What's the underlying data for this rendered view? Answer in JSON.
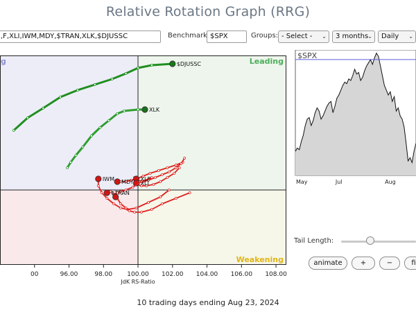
{
  "title": "Relative Rotation Graph (RRG)",
  "toolbar": {
    "symbols_value": ",F,XLI,IWM,MDY,$TRAN,XLK,$DJUSSC",
    "benchmark_label": "Benchmark:",
    "benchmark_value": "$SPX",
    "groups_label": "Groups:",
    "groups_value": "- Select -",
    "period_value": "3 months",
    "frequency_value": "Daily",
    "chevron": "⌄"
  },
  "rrg": {
    "quadrants": {
      "leading": "Leading",
      "weakening": "Weakening",
      "improving_partial": "g",
      "colors": {
        "leading_bg": "#edf5ec",
        "weakening_bg": "#f6f6e9",
        "lagging_bg": "#f9e9ea",
        "improving_bg": "#ededf8",
        "leading_text": "#4cae5a",
        "weakening_text": "#e0b417",
        "improving_text": "#8d8fd6"
      }
    },
    "x_ticks": [
      "00",
      "96.00",
      "98.00",
      "100.00",
      "102.00",
      "104.00",
      "106.00",
      "108.00"
    ],
    "x_axis_label": "JdK RS-Ratio",
    "series": [
      {
        "name": "$DJUSSC",
        "color": "#1f8f1f",
        "head_color": "#187818",
        "points": [
          [
            92.8,
            104.3
          ],
          [
            93.6,
            105.2
          ],
          [
            94.5,
            105.9
          ],
          [
            95.5,
            106.7
          ],
          [
            96.5,
            107.2
          ],
          [
            97.5,
            107.6
          ],
          [
            98.5,
            108.0
          ],
          [
            99.3,
            108.4
          ],
          [
            100.0,
            108.8
          ],
          [
            100.8,
            109.0
          ],
          [
            102.0,
            109.1
          ]
        ]
      },
      {
        "name": "XLK",
        "color": "#2f9e2f",
        "head_color": "#1c6f1c",
        "points": [
          [
            95.9,
            101.6
          ],
          [
            96.1,
            102.0
          ],
          [
            96.4,
            102.5
          ],
          [
            96.8,
            103.1
          ],
          [
            97.3,
            103.9
          ],
          [
            97.8,
            104.5
          ],
          [
            98.3,
            105.0
          ],
          [
            98.8,
            105.5
          ],
          [
            99.2,
            105.7
          ],
          [
            100.0,
            105.8
          ],
          [
            100.4,
            105.8
          ]
        ]
      },
      {
        "name": "IWM",
        "color": "#e0211f",
        "head_color": "#d01515",
        "points": [
          [
            101.8,
            100.0
          ],
          [
            101.3,
            99.5
          ],
          [
            100.6,
            99.1
          ],
          [
            99.9,
            98.7
          ],
          [
            99.4,
            98.6
          ],
          [
            99.0,
            98.7
          ],
          [
            98.6,
            99.0
          ],
          [
            98.2,
            99.4
          ],
          [
            97.9,
            99.8
          ],
          [
            97.7,
            100.3
          ],
          [
            97.7,
            100.8
          ]
        ]
      },
      {
        "name": "MDY",
        "color": "#e0211f",
        "head_color": "#d01515",
        "points": [
          [
            102.6,
            102.0
          ],
          [
            102.2,
            101.8
          ],
          [
            101.7,
            101.6
          ],
          [
            101.2,
            101.4
          ],
          [
            100.7,
            101.2
          ],
          [
            100.3,
            101.0
          ],
          [
            99.9,
            100.8
          ],
          [
            99.6,
            100.7
          ],
          [
            99.3,
            100.6
          ],
          [
            99.0,
            100.6
          ],
          [
            98.8,
            100.6
          ]
        ]
      },
      {
        "name": "XLF",
        "color": "#e0211f",
        "head_color": "#d01515",
        "points": [
          [
            102.7,
            102.3
          ],
          [
            102.5,
            101.9
          ],
          [
            102.2,
            101.6
          ],
          [
            101.8,
            101.3
          ],
          [
            101.4,
            101.1
          ],
          [
            101.0,
            100.9
          ],
          [
            100.6,
            100.7
          ],
          [
            100.3,
            100.6
          ],
          [
            100.0,
            100.7
          ],
          [
            99.8,
            100.9
          ],
          [
            99.9,
            100.8
          ]
        ]
      },
      {
        "name": "XLI",
        "color": "#e0211f",
        "head_color": "#d01515",
        "points": [
          [
            102.4,
            101.6
          ],
          [
            102.1,
            101.2
          ],
          [
            101.7,
            100.9
          ],
          [
            101.3,
            100.6
          ],
          [
            100.9,
            100.4
          ],
          [
            100.5,
            100.3
          ],
          [
            100.2,
            100.3
          ],
          [
            99.9,
            100.4
          ],
          [
            99.8,
            100.4
          ],
          [
            99.8,
            100.5
          ],
          [
            99.9,
            100.5
          ]
        ]
      },
      {
        "name": "$TRAN",
        "color": "#e0211f",
        "head_color": "#d01515",
        "points": [
          [
            100.8,
            100.9
          ],
          [
            100.2,
            100.6
          ],
          [
            99.7,
            100.2
          ],
          [
            99.3,
            100.0
          ],
          [
            99.0,
            99.9
          ],
          [
            98.8,
            99.8
          ],
          [
            98.6,
            99.7
          ],
          [
            98.5,
            99.8
          ],
          [
            98.4,
            99.9
          ],
          [
            98.3,
            99.9
          ],
          [
            98.2,
            99.8
          ]
        ]
      },
      {
        "name": "",
        "color": "#e0211f",
        "head_color": "#d01515",
        "points": [
          [
            103.0,
            99.8
          ],
          [
            102.2,
            99.4
          ],
          [
            101.4,
            99.0
          ],
          [
            100.8,
            98.6
          ],
          [
            100.2,
            98.4
          ],
          [
            99.8,
            98.4
          ],
          [
            99.5,
            98.5
          ],
          [
            99.3,
            98.7
          ],
          [
            99.0,
            99.0
          ],
          [
            98.8,
            99.4
          ],
          [
            98.7,
            99.5
          ]
        ]
      }
    ]
  },
  "mini": {
    "symbol": "$SPX",
    "x_labels": [
      "May",
      "Jul",
      "Aug"
    ],
    "fill_color": "#d6d6d6",
    "line_color": "#111111",
    "ref_line_color": "#5c5ce0",
    "values": [
      5050,
      5070,
      5060,
      5110,
      5150,
      5210,
      5250,
      5260,
      5210,
      5240,
      5290,
      5320,
      5300,
      5250,
      5270,
      5300,
      5330,
      5350,
      5360,
      5290,
      5330,
      5380,
      5400,
      5430,
      5460,
      5480,
      5470,
      5500,
      5490,
      5520,
      5560,
      5530,
      5540,
      5490,
      5510,
      5550,
      5580,
      5600,
      5620,
      5590,
      5630,
      5660,
      5640,
      5580,
      5520,
      5460,
      5430,
      5400,
      5420,
      5360,
      5390,
      5300,
      5320,
      5270,
      5250,
      5200,
      5100,
      4990,
      5010,
      4980,
      5050,
      5100
    ]
  },
  "controls": {
    "tail_length_label": "Tail Length:",
    "animate_label": "animate",
    "plus_label": "+",
    "minus_label": "−",
    "fit_label": "fit"
  },
  "footer": "10 trading days ending Aug 23, 2024"
}
